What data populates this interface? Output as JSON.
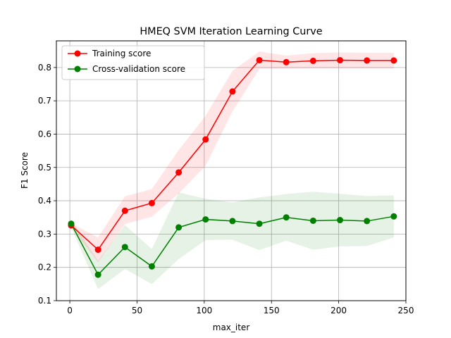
{
  "chart_data": {
    "type": "line",
    "title": "HMEQ SVM Iteration Learning Curve",
    "xlabel": "max_iter",
    "ylabel": "F1 Score",
    "xlim": [
      -10,
      250
    ],
    "ylim": [
      0.1,
      0.88
    ],
    "xticks": [
      0,
      50,
      100,
      150,
      200,
      250
    ],
    "yticks": [
      0.1,
      0.2,
      0.3,
      0.4,
      0.5,
      0.6,
      0.7,
      0.8
    ],
    "grid": true,
    "legend_position": "top-left",
    "x": [
      1,
      21,
      41,
      61,
      81,
      101,
      121,
      141,
      161,
      181,
      201,
      221,
      241
    ],
    "series": [
      {
        "name": "Training score",
        "color": "#ff0000",
        "band_color": "#ff0000",
        "values": [
          0.326,
          0.253,
          0.37,
          0.393,
          0.485,
          0.584,
          0.728,
          0.822,
          0.816,
          0.82,
          0.822,
          0.821,
          0.821
        ],
        "band_low": [
          0.32,
          0.215,
          0.33,
          0.352,
          0.422,
          0.505,
          0.668,
          0.796,
          0.796,
          0.797,
          0.797,
          0.797,
          0.797
        ],
        "band_high": [
          0.332,
          0.29,
          0.413,
          0.435,
          0.552,
          0.655,
          0.79,
          0.848,
          0.836,
          0.843,
          0.845,
          0.844,
          0.844
        ]
      },
      {
        "name": "Cross-validation score",
        "color": "#008000",
        "band_color": "#008000",
        "values": [
          0.331,
          0.178,
          0.261,
          0.203,
          0.32,
          0.344,
          0.339,
          0.331,
          0.35,
          0.34,
          0.342,
          0.339,
          0.353
        ],
        "band_low": [
          0.32,
          0.135,
          0.195,
          0.15,
          0.225,
          0.282,
          0.283,
          0.252,
          0.28,
          0.253,
          0.263,
          0.264,
          0.29
        ],
        "band_high": [
          0.342,
          0.22,
          0.327,
          0.255,
          0.425,
          0.406,
          0.395,
          0.41,
          0.42,
          0.427,
          0.421,
          0.414,
          0.416
        ]
      }
    ]
  }
}
